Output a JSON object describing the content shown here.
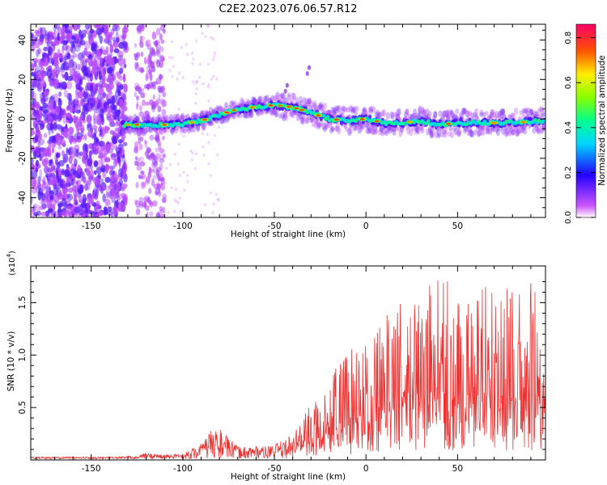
{
  "figure_title": "C2E2.2023.076.06.57.R12",
  "chart_data": [
    {
      "type": "heatmap",
      "title": "C2E2.2023.076.06.57.R12",
      "xlabel": "Height of straight line (km)",
      "ylabel": "Frequency (Hz)",
      "xlim": [
        -183,
        98
      ],
      "ylim": [
        -50,
        48
      ],
      "x_ticks": [
        -150,
        -100,
        -50,
        0,
        50
      ],
      "x_tick_labels": [
        "-150",
        "-100",
        "-50",
        "0",
        "50"
      ],
      "y_ticks": [
        -40,
        -20,
        0,
        20,
        40
      ],
      "y_tick_labels": [
        "-40",
        "-20",
        "0",
        "20",
        "40"
      ],
      "colorbar": {
        "label": "Normalized spectral amplitude",
        "range": [
          0,
          0.86
        ],
        "ticks": [
          0.0,
          0.2,
          0.4,
          0.6,
          0.8
        ],
        "tick_labels": [
          "0.0",
          "0.2",
          "0.4",
          "0.6",
          "0.8"
        ]
      },
      "ridge": {
        "description_points_x": [
          -133,
          -120,
          -110,
          -100,
          -90,
          -80,
          -70,
          -60,
          -50,
          -40,
          -30,
          -20,
          -10,
          0,
          10,
          20,
          30,
          40,
          50,
          60,
          70,
          80,
          95
        ],
        "description_points_y": [
          -3,
          -3,
          -3,
          -2.5,
          -1,
          2,
          5,
          6,
          7,
          6,
          3,
          0,
          -1,
          0,
          -2,
          -2,
          -1,
          -3,
          -2,
          -2,
          -2,
          -2,
          -1
        ]
      }
    },
    {
      "type": "line",
      "xlabel": "Height of straight line (km)",
      "ylabel": "SNR (10 * v/v)",
      "y_multiplier_label": "(x10",
      "y_multiplier_exp": "4",
      "xlim": [
        -183,
        98
      ],
      "ylim": [
        0,
        1.85
      ],
      "x_ticks": [
        -150,
        -100,
        -50,
        0,
        50
      ],
      "x_tick_labels": [
        "-150",
        "-100",
        "-50",
        "0",
        "50"
      ],
      "y_ticks": [
        0.5,
        1.0,
        1.5
      ],
      "y_tick_labels": [
        "0.5",
        "1.0",
        "1.5"
      ],
      "series": [
        {
          "name": "SNR",
          "color": "#ee3333",
          "envelope_x": [
            -183,
            -140,
            -125,
            -120,
            -110,
            -100,
            -95,
            -90,
            -85,
            -80,
            -75,
            -70,
            -65,
            -60,
            -55,
            -50,
            -45,
            -40,
            -35,
            -30,
            -25,
            -20,
            -15,
            -10,
            -5,
            0,
            5,
            10,
            15,
            20,
            25,
            30,
            35,
            40,
            45,
            50,
            55,
            60,
            65,
            70,
            75,
            80,
            85,
            90,
            95,
            98
          ],
          "envelope_y": [
            0.02,
            0.02,
            0.03,
            0.06,
            0.04,
            0.05,
            0.1,
            0.15,
            0.27,
            0.3,
            0.2,
            0.12,
            0.12,
            0.13,
            0.12,
            0.14,
            0.18,
            0.25,
            0.4,
            0.6,
            0.55,
            0.7,
            0.95,
            1.05,
            1.1,
            1.2,
            1.3,
            1.35,
            1.45,
            1.55,
            1.7,
            1.6,
            1.75,
            1.75,
            1.8,
            1.65,
            1.6,
            1.6,
            1.7,
            1.65,
            1.6,
            1.7,
            1.55,
            1.7,
            1.55,
            1.45
          ]
        }
      ]
    }
  ]
}
